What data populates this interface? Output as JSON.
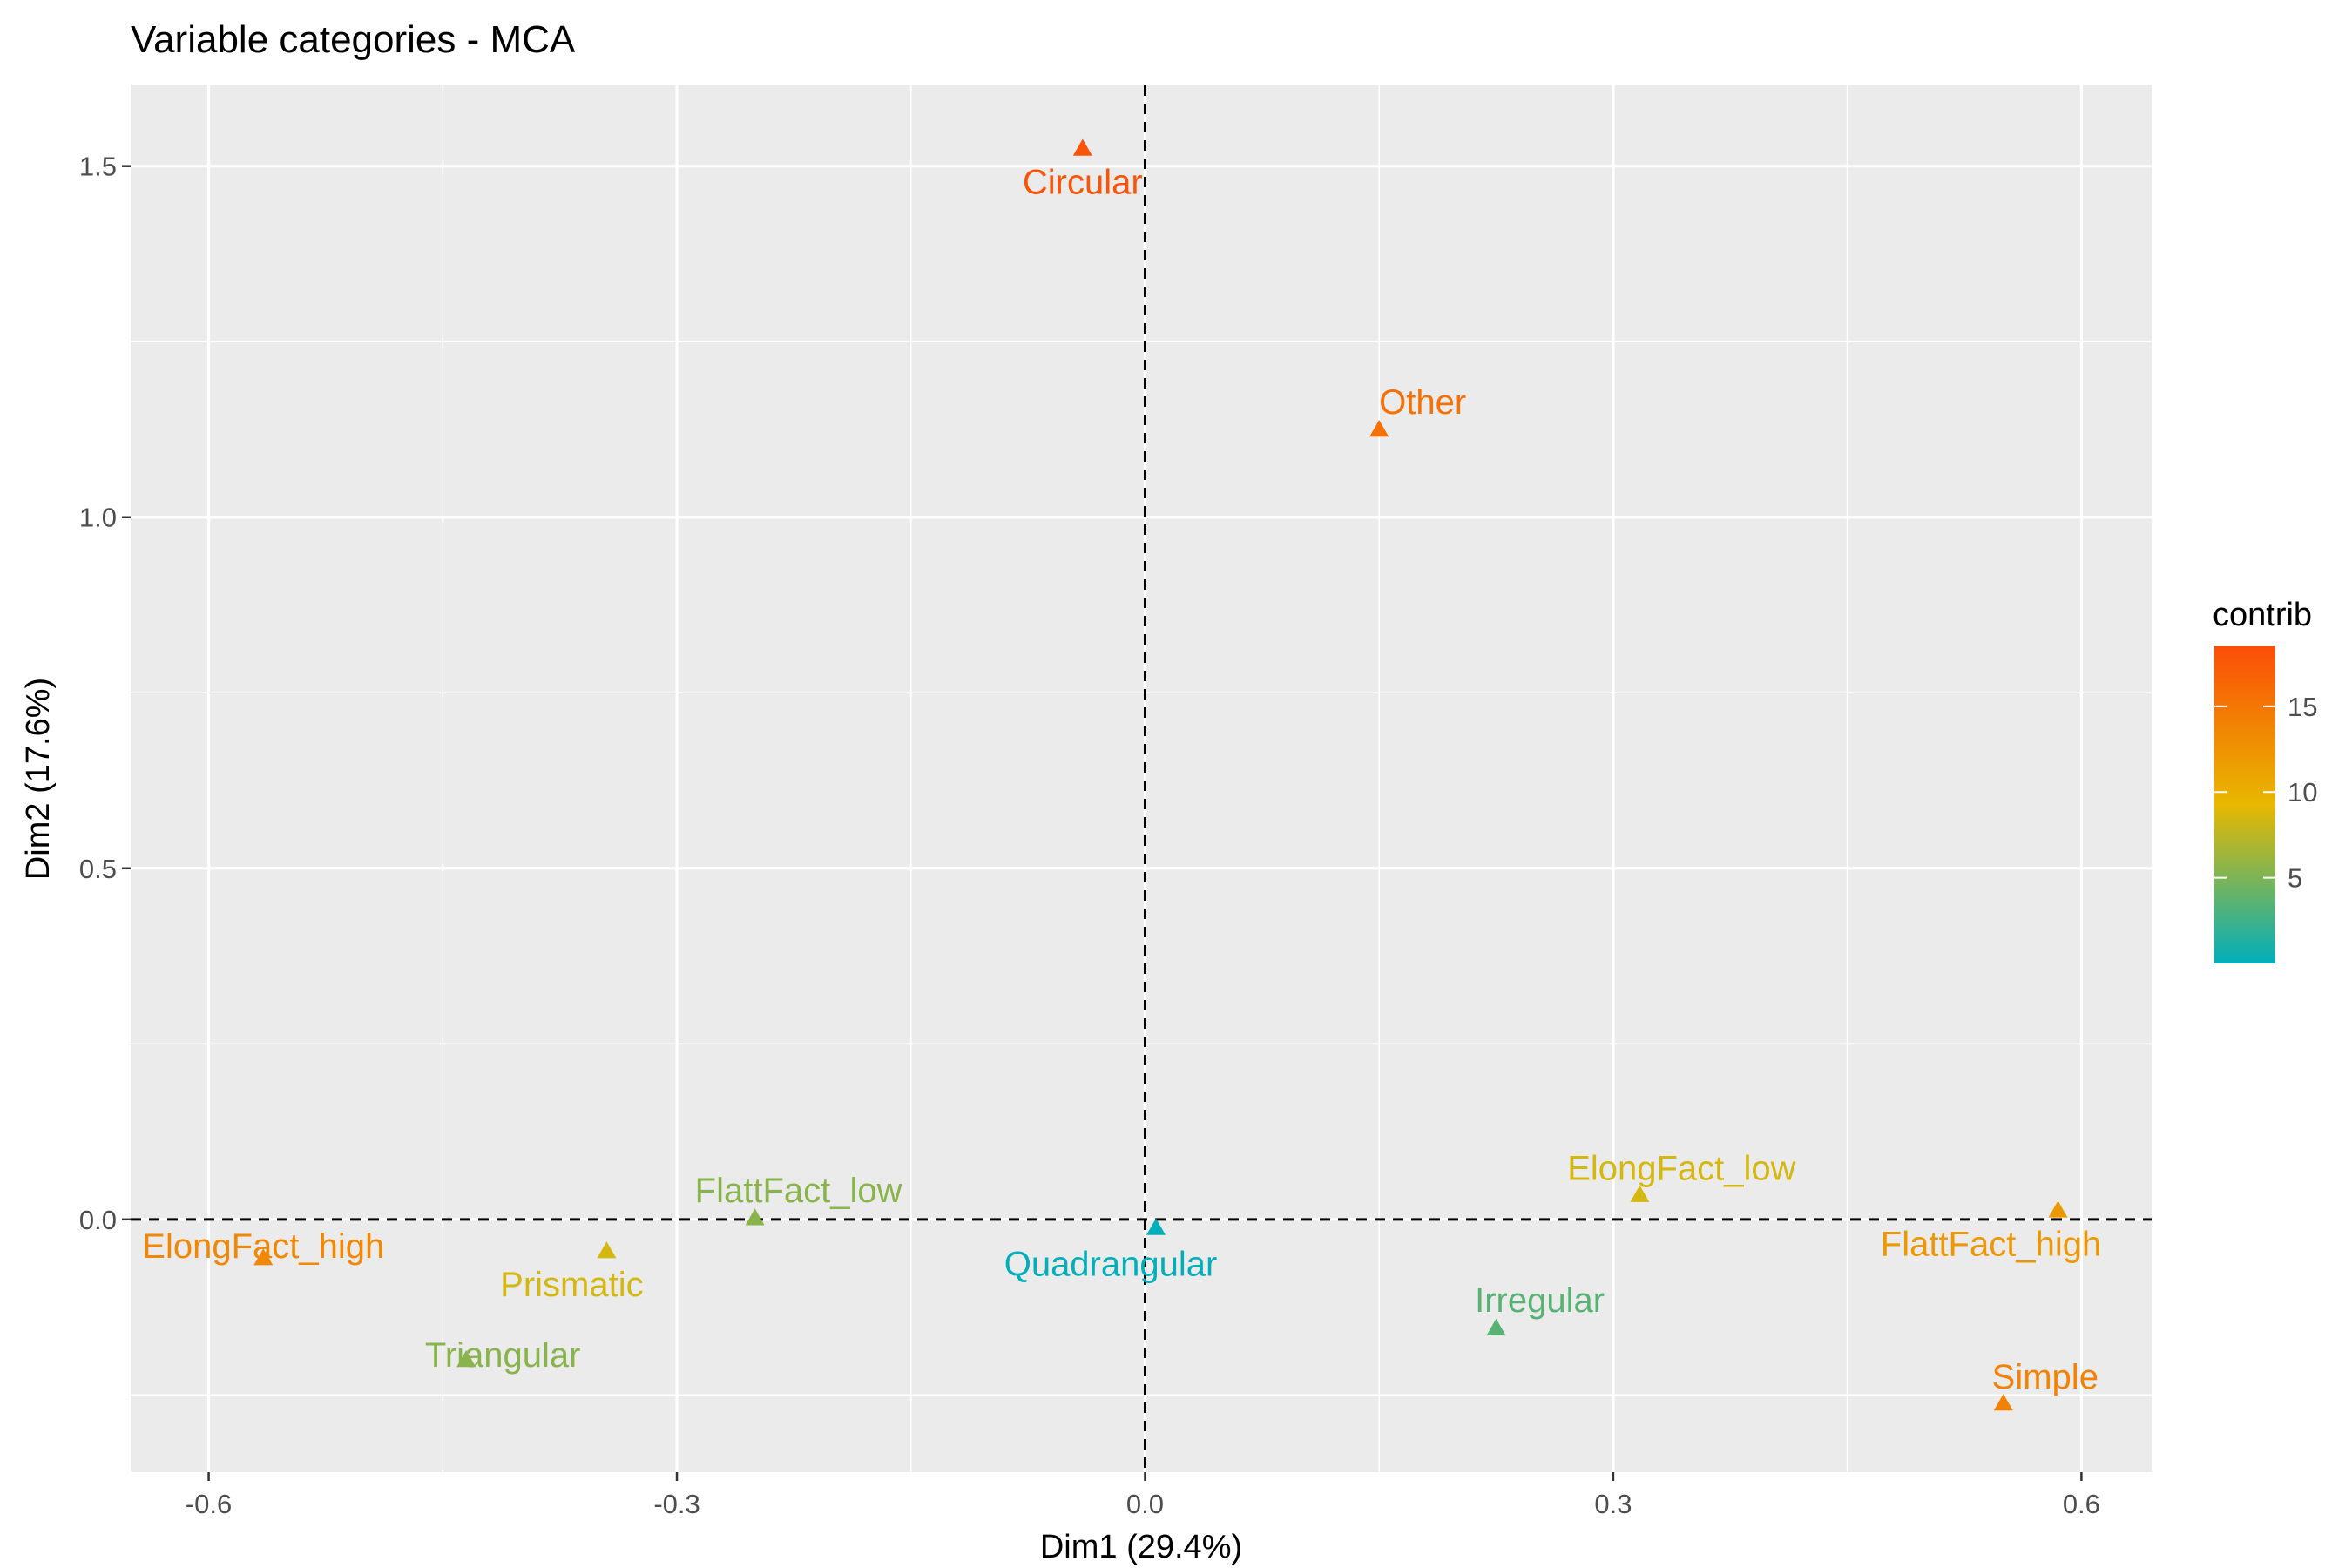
{
  "chart_data": {
    "type": "scatter",
    "title": "Variable categories - MCA",
    "xlabel": "Dim1 (29.4%)",
    "ylabel": "Dim2 (17.6%)",
    "xlim": [
      -0.65,
      0.645
    ],
    "ylim": [
      -0.36,
      1.615
    ],
    "x_ticks": [
      -0.6,
      -0.3,
      0.0,
      0.3,
      0.6
    ],
    "x_tick_labels": [
      "-0.6",
      "-0.3",
      "0.0",
      "0.3",
      "0.6"
    ],
    "y_ticks": [
      0.0,
      0.5,
      1.0,
      1.5
    ],
    "y_tick_labels": [
      "0.0",
      "0.5",
      "1.0",
      "1.5"
    ],
    "grid": true,
    "reference_lines": {
      "x": 0,
      "y": 0,
      "style": "dashed"
    },
    "marker": "triangle",
    "legend": {
      "title": "contrib",
      "placement": "right",
      "type": "gradient",
      "range": [
        0,
        18.5
      ],
      "ticks": [
        5,
        10,
        15
      ],
      "tick_labels": [
        "5",
        "10",
        "15"
      ],
      "colors": [
        "#00AFBB",
        "#E7B800",
        "#FC4E07"
      ]
    },
    "points": [
      {
        "label": "Circular",
        "x": -0.04,
        "y": 1.525,
        "contrib": 18.0
      },
      {
        "label": "Other",
        "x": 0.15,
        "y": 1.125,
        "contrib": 15.5
      },
      {
        "label": "ElongFact_high",
        "x": -0.565,
        "y": -0.055,
        "contrib": 13.5
      },
      {
        "label": "FlattFact_low",
        "x": -0.25,
        "y": 0.002,
        "contrib": 5.5
      },
      {
        "label": "Prismatic",
        "x": -0.345,
        "y": -0.045,
        "contrib": 8.5
      },
      {
        "label": "Triangular",
        "x": -0.435,
        "y": -0.2,
        "contrib": 5.5
      },
      {
        "label": "Quadrangular",
        "x": 0.007,
        "y": -0.012,
        "contrib": 0.1
      },
      {
        "label": "ElongFact_low",
        "x": 0.317,
        "y": 0.035,
        "contrib": 8.5
      },
      {
        "label": "FlattFact_high",
        "x": 0.585,
        "y": 0.013,
        "contrib": 12.0
      },
      {
        "label": "Irregular",
        "x": 0.225,
        "y": -0.155,
        "contrib": 3.5
      },
      {
        "label": "Simple",
        "x": 0.55,
        "y": -0.262,
        "contrib": 14.0
      }
    ]
  }
}
